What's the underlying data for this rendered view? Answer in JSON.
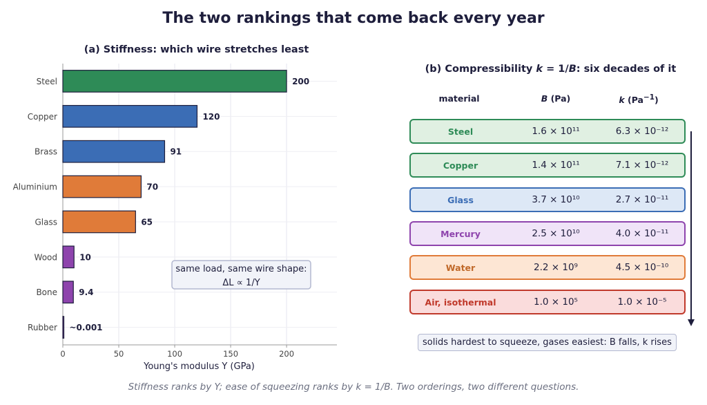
{
  "title": "The two rankings that come back every year",
  "footer": "Stiffness ranks by Y; ease of squeezing ranks by k = 1/B. Two orderings, two different questions.",
  "chart_data": [
    {
      "type": "bar",
      "orientation": "horizontal",
      "title": "(a) Stiffness: which wire stretches least",
      "xlabel": "Young's modulus  Y  (GPa)",
      "ylabel": "",
      "xlim": [
        0,
        245
      ],
      "xticks": [
        0,
        50,
        100,
        150,
        200
      ],
      "grid": true,
      "categories": [
        "Steel",
        "Copper",
        "Brass",
        "Aluminium",
        "Glass",
        "Wood",
        "Bone",
        "Rubber"
      ],
      "values": [
        200,
        120,
        91,
        70,
        65,
        10,
        9.4,
        0.001
      ],
      "value_labels": [
        "200",
        "120",
        "91",
        "70",
        "65",
        "10",
        "9.4",
        "~0.001"
      ],
      "colors": [
        "#2e8b57",
        "#3b6db5",
        "#3b6db5",
        "#e07b39",
        "#e07b39",
        "#8e44ad",
        "#8e44ad",
        "#8e44ad"
      ],
      "annotation": [
        "same load, same wire shape:",
        "ΔL ∝ 1/Y"
      ]
    },
    {
      "type": "table",
      "title": "(b) Compressibility k = 1/B: six decades of it",
      "columns": [
        "material",
        "B (Pa)",
        "k (Pa⁻¹)"
      ],
      "rows": [
        {
          "material": "Steel",
          "B": "1.6 × 10¹¹",
          "k": "6.3 × 10⁻¹²",
          "color": "#2e8b57",
          "fill": "#e0f0e2"
        },
        {
          "material": "Copper",
          "B": "1.4 × 10¹¹",
          "k": "7.1 × 10⁻¹²",
          "color": "#2e8b57",
          "fill": "#e0f0e2"
        },
        {
          "material": "Glass",
          "B": "3.7 × 10¹⁰",
          "k": "2.7 × 10⁻¹¹",
          "color": "#3b6db5",
          "fill": "#dde8f6"
        },
        {
          "material": "Mercury",
          "B": "2.5 × 10¹⁰",
          "k": "4.0 × 10⁻¹¹",
          "color": "#8e44ad",
          "fill": "#f0e4f8"
        },
        {
          "material": "Water",
          "B": "2.2 × 10⁹",
          "k": "4.5 × 10⁻¹⁰",
          "color": "#e07b39",
          "text_color": "#c0692a",
          "fill": "#fde6d4"
        },
        {
          "material": "Air, isothermal",
          "B": "1.0 × 10⁵",
          "k": "1.0 × 10⁻⁵",
          "color": "#c0392b",
          "fill": "#fadcdc"
        }
      ],
      "note": "solids hardest to squeeze, gases easiest:  B falls, k rises"
    }
  ]
}
